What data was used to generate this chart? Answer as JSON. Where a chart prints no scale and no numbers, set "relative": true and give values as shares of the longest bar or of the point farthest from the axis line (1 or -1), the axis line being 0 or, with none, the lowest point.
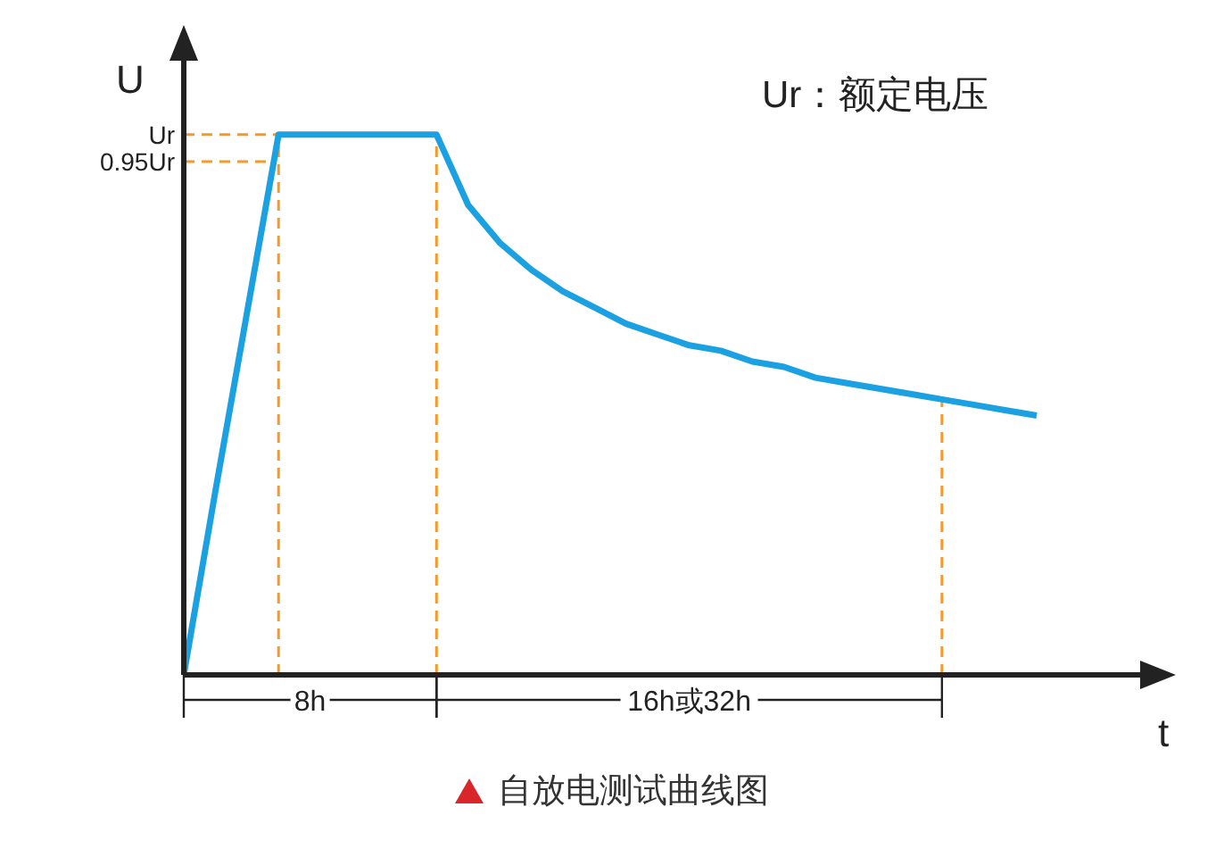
{
  "chart_data": {
    "type": "line",
    "title": "自放电测试曲线图",
    "xlabel": "t",
    "ylabel": "U",
    "relative": true,
    "categories": [
      null,
      null,
      null,
      null,
      null,
      null,
      null,
      null,
      null,
      null,
      null,
      null,
      null,
      null,
      null,
      null,
      null,
      null,
      null,
      null,
      null,
      null,
      null,
      null,
      null,
      null,
      null,
      null
    ],
    "series": [
      {
        "color": "#1ba1e2",
        "values": [
          0,
          0.34,
          0.67,
          1,
          1,
          1,
          1,
          1,
          1,
          0.87,
          0.8,
          0.75,
          0.71,
          0.68,
          0.65,
          0.63,
          0.61,
          0.6,
          0.58,
          0.57,
          0.55,
          0.54,
          0.53,
          0.52,
          0.51,
          0.5,
          0.49,
          0.48
        ]
      }
    ],
    "ref_lines": [
      {
        "axis": "y",
        "value": 1,
        "label": "Ur",
        "color": "#f39a2b",
        "line_style": "dashed"
      },
      {
        "axis": "y",
        "value": 0.95,
        "label": "0.95Ur",
        "color": "#f39a2b",
        "line_style": "dashed"
      }
    ],
    "annotations": [
      "8h",
      "16h或32h",
      "Ur：额定电压"
    ],
    "marker": "none",
    "line_style": "solid"
  }
}
